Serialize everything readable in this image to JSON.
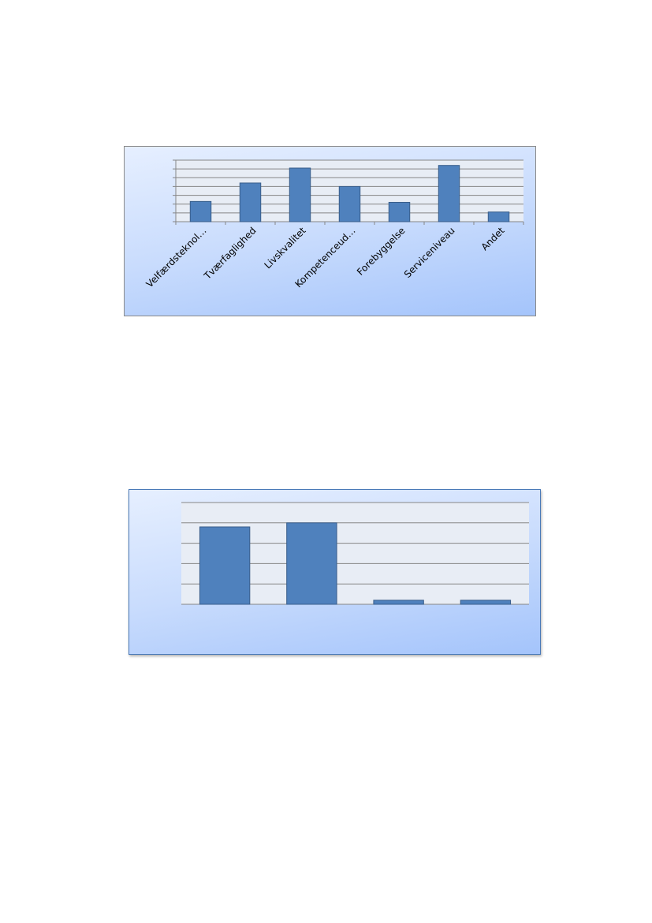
{
  "chart_data": [
    {
      "type": "bar",
      "categories": [
        "Velfærdsteknol…",
        "Tværfaglighed",
        "Livskvalitet",
        "Kompetenceud…",
        "Forebyggelse",
        "Serviceniveau",
        "Andet"
      ],
      "values": [
        2.3,
        4.4,
        6.1,
        4.0,
        2.2,
        6.4,
        1.1
      ],
      "ylim": [
        0,
        7
      ],
      "grid": true,
      "bar_color": "#4f81bd"
    },
    {
      "type": "bar",
      "categories": [
        "",
        "",
        "",
        ""
      ],
      "values": [
        3.8,
        4.0,
        0.2,
        0.2
      ],
      "ylim": [
        0,
        5
      ],
      "grid": true,
      "bar_color": "#4f81bd"
    }
  ]
}
